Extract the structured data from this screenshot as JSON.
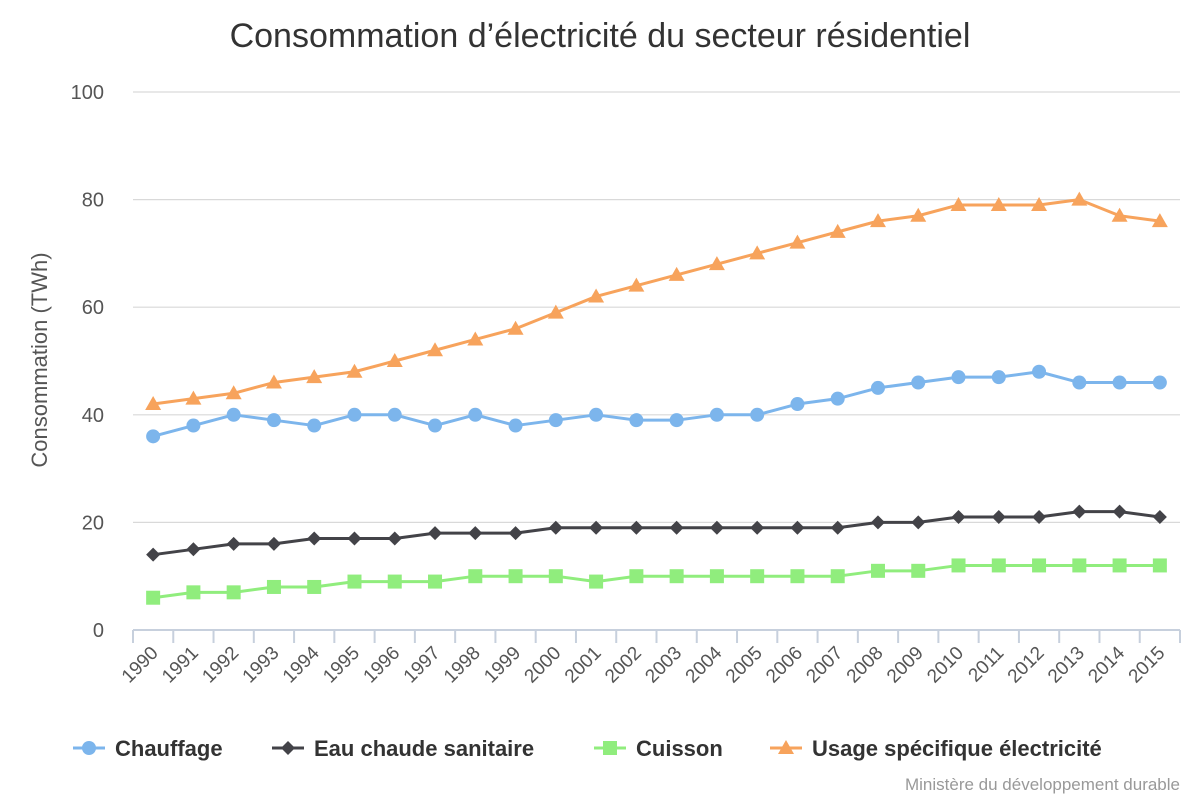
{
  "chart_data": {
    "type": "line",
    "title": "Consommation d’électricité du secteur résidentiel",
    "ylabel": "Consommation (TWh)",
    "xlabel": "",
    "ylim": [
      0,
      100
    ],
    "yticks": [
      0,
      20,
      40,
      60,
      80,
      100
    ],
    "grid": true,
    "legend": "bottom",
    "categories": [
      "1990",
      "1991",
      "1992",
      "1993",
      "1994",
      "1995",
      "1996",
      "1997",
      "1998",
      "1999",
      "2000",
      "2001",
      "2002",
      "2003",
      "2004",
      "2005",
      "2006",
      "2007",
      "2008",
      "2009",
      "2010",
      "2011",
      "2012",
      "2013",
      "2014",
      "2015"
    ],
    "series": [
      {
        "name": "Chauffage",
        "color": "#7cb5ec",
        "marker": "circle",
        "values": [
          36,
          38,
          40,
          39,
          38,
          40,
          40,
          38,
          40,
          38,
          39,
          40,
          39,
          39,
          40,
          40,
          42,
          43,
          45,
          46,
          47,
          47,
          48,
          46,
          46,
          46
        ]
      },
      {
        "name": "Eau chaude sanitaire",
        "color": "#434348",
        "marker": "diamond",
        "values": [
          14,
          15,
          16,
          16,
          17,
          17,
          17,
          18,
          18,
          18,
          19,
          19,
          19,
          19,
          19,
          19,
          19,
          19,
          20,
          20,
          21,
          21,
          21,
          22,
          22,
          21
        ]
      },
      {
        "name": "Cuisson",
        "color": "#90ed7d",
        "marker": "square",
        "values": [
          6,
          7,
          7,
          8,
          8,
          9,
          9,
          9,
          10,
          10,
          10,
          9,
          10,
          10,
          10,
          10,
          10,
          10,
          11,
          11,
          12,
          12,
          12,
          12,
          12,
          12
        ]
      },
      {
        "name": "Usage spécifique électricité",
        "color": "#f7a35c",
        "marker": "triangle",
        "values": [
          42,
          43,
          44,
          46,
          47,
          48,
          50,
          52,
          54,
          56,
          59,
          62,
          64,
          66,
          68,
          70,
          72,
          74,
          76,
          77,
          79,
          79,
          79,
          80,
          77,
          76
        ]
      }
    ],
    "credits": "Ministère du développement durable"
  }
}
